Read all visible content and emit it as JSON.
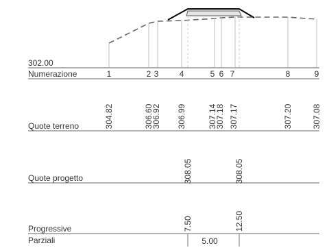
{
  "reference_datum": "302.00",
  "rows": {
    "numerazione": "Numerazione",
    "quote_terreno": "Quote terreno",
    "quote_progetto": "Quote progetto",
    "progressive": "Progressive",
    "parziali": "Parziali"
  },
  "sections": [
    {
      "number": "1",
      "ground": "304.82"
    },
    {
      "number": "2",
      "ground": "306.60"
    },
    {
      "number": "3",
      "ground": "306.92"
    },
    {
      "number": "4",
      "ground": "306.99",
      "design": "308.05",
      "progressive": "7.50"
    },
    {
      "number": "5",
      "ground": "307.14"
    },
    {
      "number": "6",
      "ground": "307.18"
    },
    {
      "number": "7",
      "ground": "307.17",
      "design": "308.05",
      "progressive": "12.50"
    },
    {
      "number": "8",
      "ground": "307.20"
    },
    {
      "number": "9",
      "ground": "307.08"
    }
  ],
  "partials": [
    "5.00"
  ],
  "colors": {
    "ground_line": "#666666",
    "design_line": "#000000",
    "fill": "#e6e6e6",
    "grid": "#bdbdbd",
    "text": "#333333"
  }
}
